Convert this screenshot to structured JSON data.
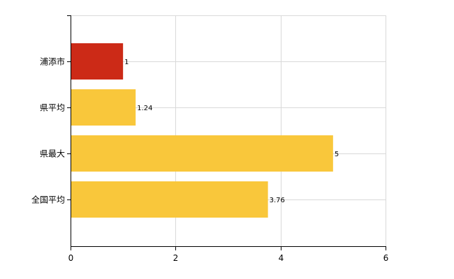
{
  "chart_data": {
    "type": "bar",
    "orientation": "horizontal",
    "title": "",
    "xlabel": "",
    "ylabel": "",
    "categories": [
      "浦添市",
      "県平均",
      "県最大",
      "全国平均"
    ],
    "values": [
      1,
      1.24,
      5,
      3.76
    ],
    "value_labels": [
      "1",
      "1.24",
      "5",
      "3.76"
    ],
    "bar_colors": [
      "#cc2a17",
      "#f9c73b",
      "#f9c73b",
      "#f9c73b"
    ],
    "xlim": [
      0,
      6
    ],
    "x_ticks": [
      0,
      2,
      4,
      6
    ],
    "x_tick_labels": [
      "0",
      "2",
      "4",
      "6"
    ],
    "grid": true,
    "grid_color": "#d9d9d9",
    "legend": "none"
  }
}
